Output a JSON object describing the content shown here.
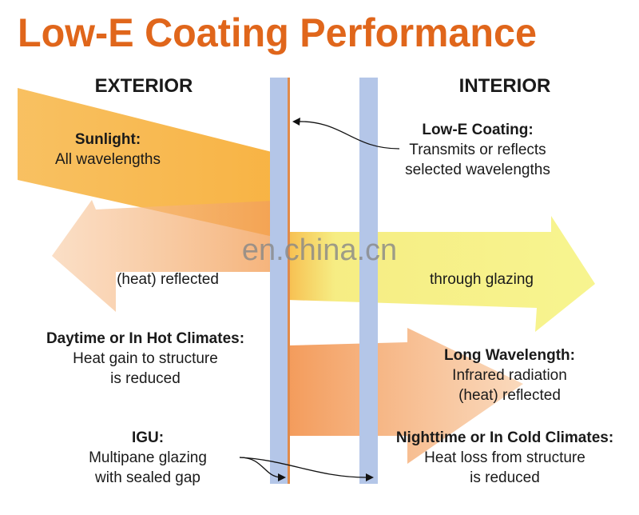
{
  "title": "Low-E Coating Performance",
  "sides": {
    "exterior": "EXTERIOR",
    "interior": "INTERIOR"
  },
  "callouts": [
    {
      "heading": "Sunlight:",
      "lines": [
        "All wavelengths"
      ]
    },
    {
      "heading": "Low-E Coating:",
      "lines": [
        "Transmits or reflects",
        "selected wavelengths"
      ]
    },
    {
      "heading": "Daytime or In Hot Climates:",
      "lines": [
        "Heat gain to structure",
        "is reduced"
      ]
    },
    {
      "heading": "Long Wavelength:",
      "lines": [
        "Infrared radiation",
        "(heat) reflected"
      ]
    },
    {
      "heading": "IGU:",
      "lines": [
        "Multipane glazing",
        "with sealed gap"
      ]
    },
    {
      "heading": "Nighttime or In Cold Climates:",
      "lines": [
        "Heat loss from structure",
        "is reduced"
      ]
    }
  ],
  "reflected_label": "(heat) reflected",
  "transmitted_label": "through glazing",
  "watermark": "en.china.cn"
}
